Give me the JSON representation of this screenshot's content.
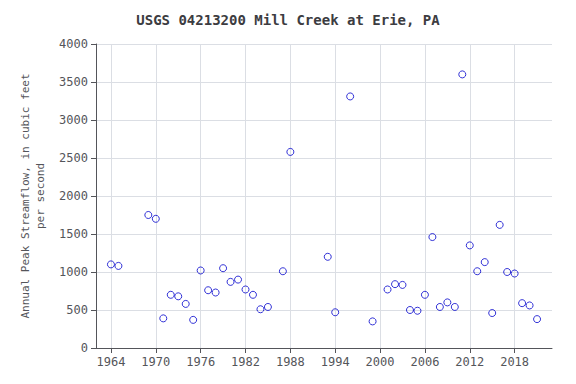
{
  "chart_data": {
    "type": "scatter",
    "title": "USGS 04213200 Mill Creek at Erie, PA",
    "ylabel": "Annual Peak Streamflow, in cubic feet\nper second",
    "x": [
      1964,
      1965,
      1969,
      1970,
      1971,
      1972,
      1973,
      1974,
      1975,
      1976,
      1977,
      1978,
      1979,
      1980,
      1981,
      1982,
      1983,
      1984,
      1985,
      1987,
      1988,
      1993,
      1994,
      1996,
      1999,
      2001,
      2002,
      2003,
      2004,
      2005,
      2006,
      2007,
      2008,
      2009,
      2010,
      2011,
      2012,
      2013,
      2014,
      2015,
      2016,
      2017,
      2018,
      2019,
      2020,
      2021
    ],
    "values": [
      1100,
      1080,
      1750,
      1700,
      390,
      700,
      680,
      580,
      370,
      1020,
      760,
      730,
      1050,
      870,
      900,
      770,
      700,
      510,
      540,
      1010,
      2580,
      1200,
      470,
      3310,
      350,
      770,
      840,
      830,
      500,
      490,
      700,
      1460,
      540,
      600,
      540,
      3600,
      1350,
      1010,
      1130,
      460,
      1620,
      1000,
      980,
      590,
      560,
      380
    ],
    "color": "#0000cc",
    "marker": "circle",
    "xlim": [
      1962,
      2023
    ],
    "xticks": [
      1964,
      1970,
      1976,
      1982,
      1988,
      1994,
      2000,
      2006,
      2012,
      2018
    ],
    "ylim": [
      0,
      4000
    ],
    "yticks": [
      0,
      500,
      1000,
      1500,
      2000,
      2500,
      3000,
      3500,
      4000
    ],
    "grid": true
  }
}
